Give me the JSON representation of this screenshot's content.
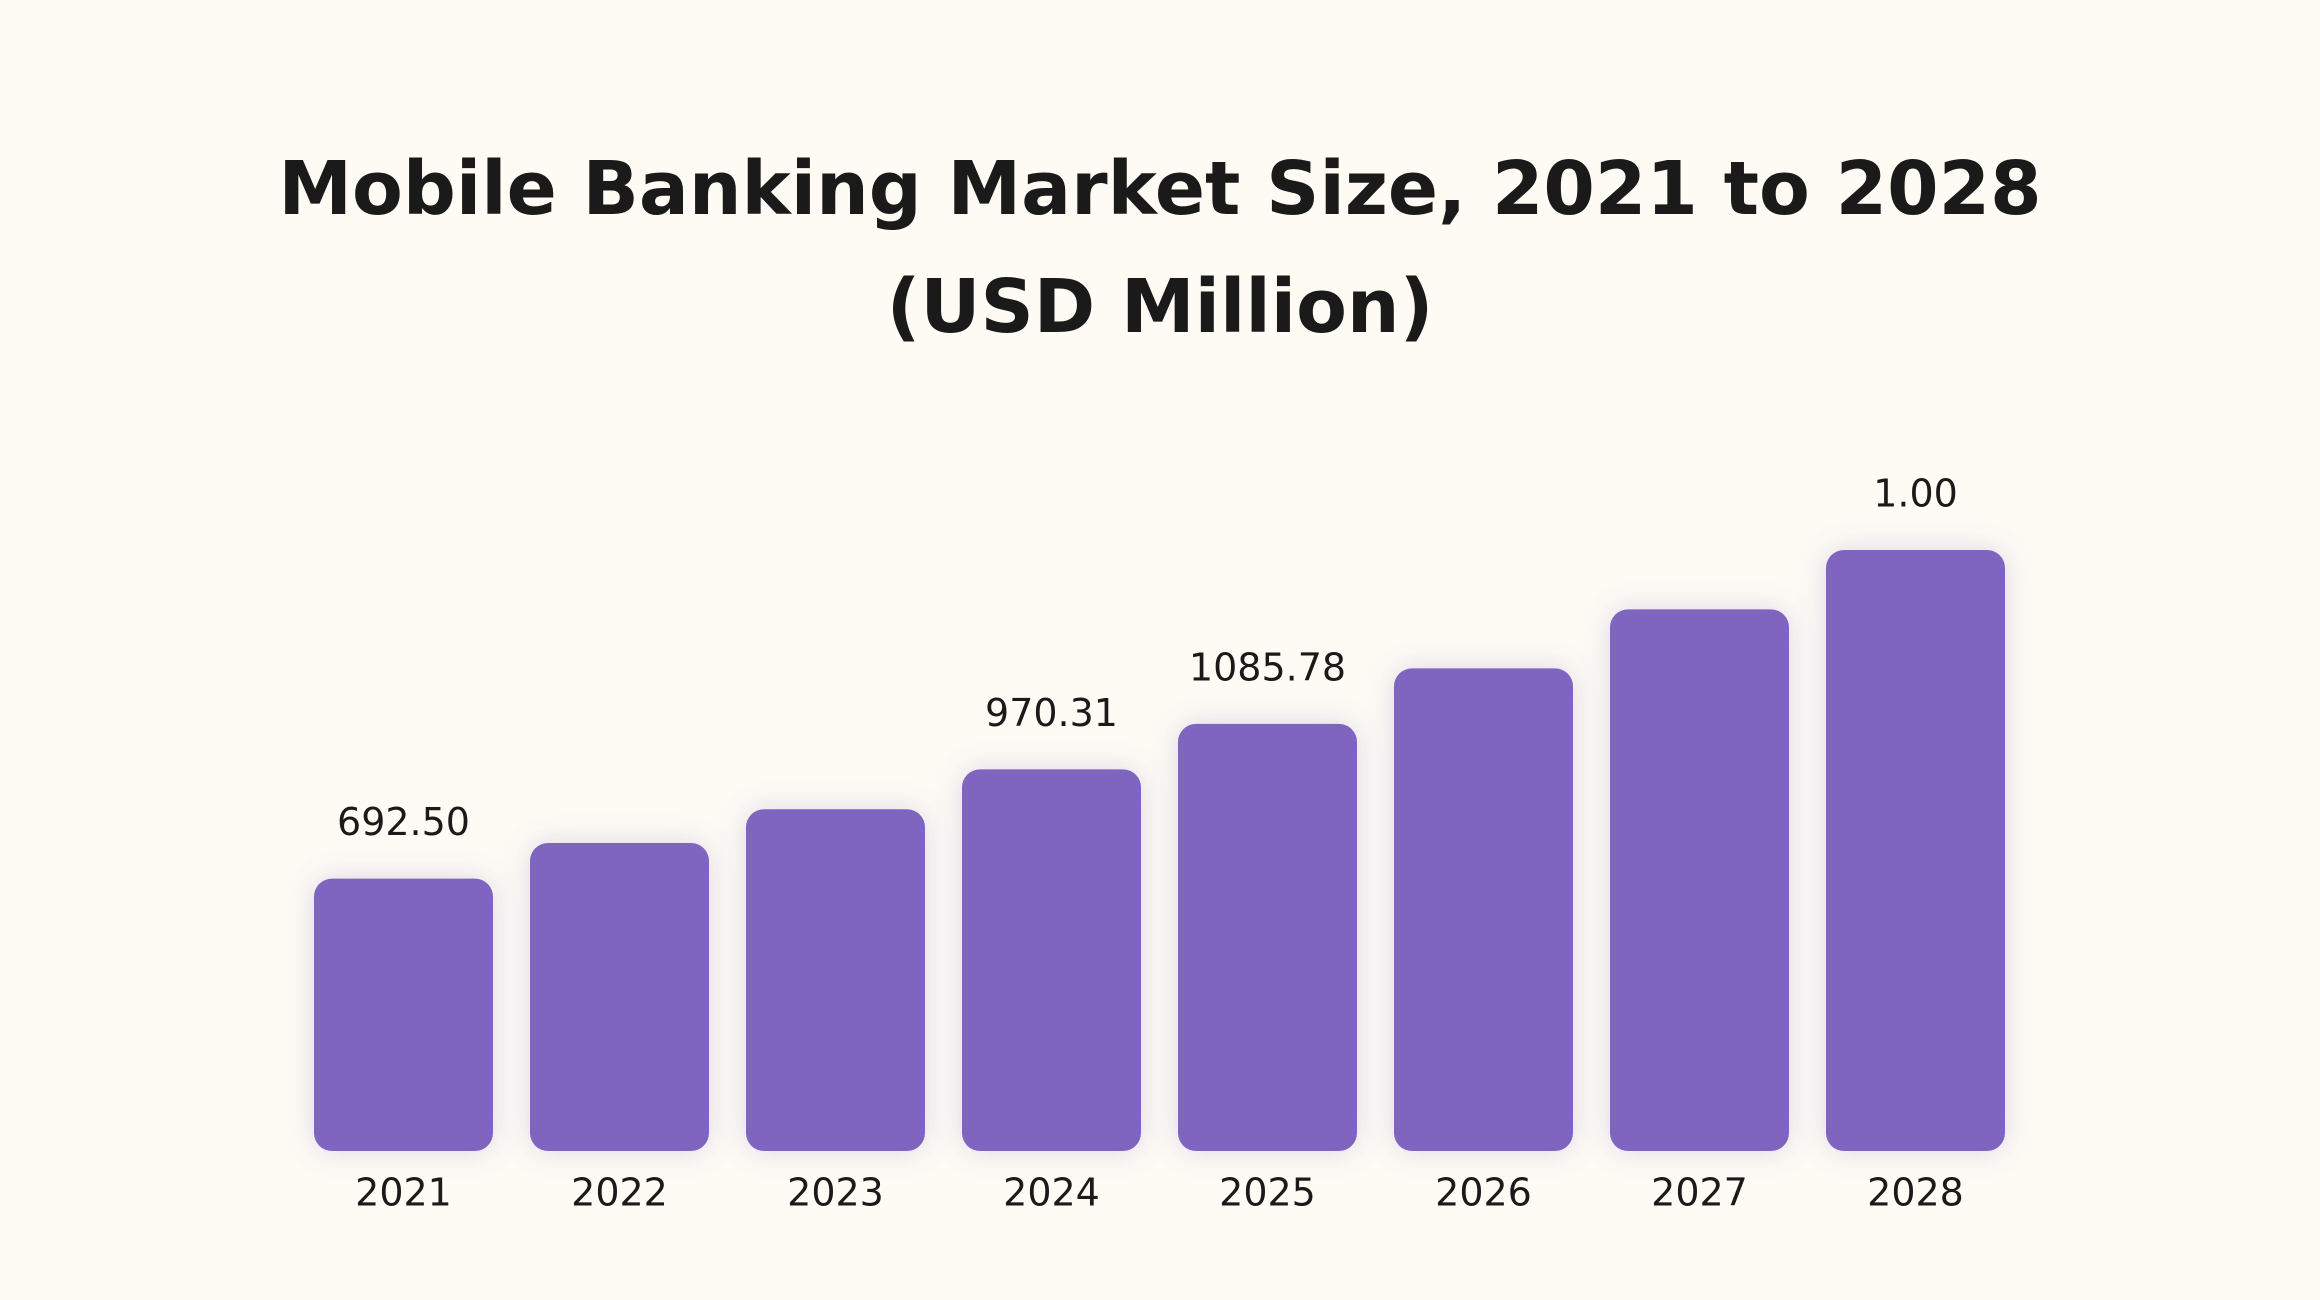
{
  "chart_data": {
    "type": "bar",
    "title": "Mobile Banking Market Size, 2021 to 2028 (USD Million)",
    "categories": [
      "2021",
      "2022",
      "2023",
      "2024",
      "2025",
      "2026",
      "2027",
      "2028"
    ],
    "values": [
      692.5,
      783,
      869,
      970.31,
      1085.78,
      1227,
      1377,
      1528
    ],
    "value_labels": [
      "692.50",
      null,
      null,
      "970.31",
      "1085.78",
      null,
      null,
      null
    ],
    "annotations": [
      "1.00"
    ],
    "color": "#7f65c0"
  }
}
